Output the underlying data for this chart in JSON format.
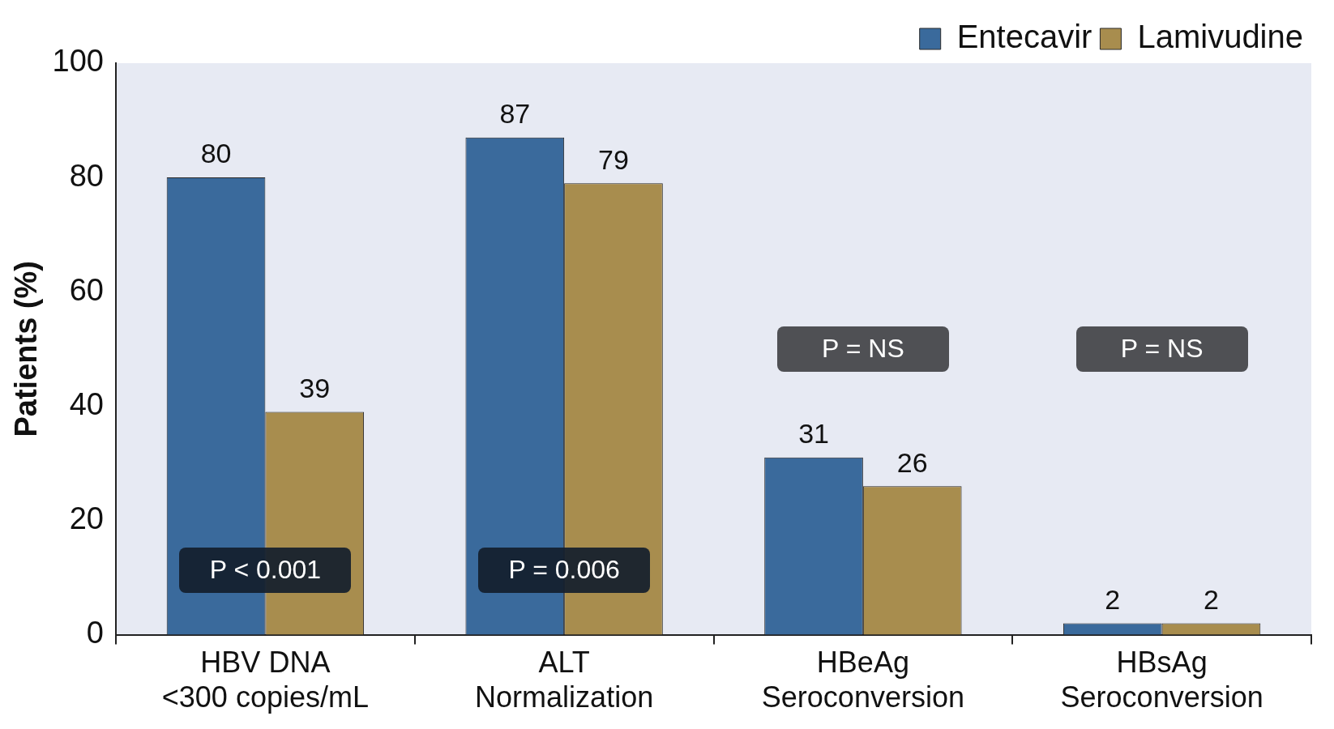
{
  "chart_data": {
    "type": "bar",
    "ylabel": "Patients (%)",
    "categories": [
      "HBV DNA\n<300 copies/mL",
      "ALT\nNormalization",
      "HBeAg\nSeroconversion",
      "HBsAg\nSeroconversion"
    ],
    "series": [
      {
        "name": "Entecavir",
        "color": "#3a6a9c",
        "values": [
          80,
          87,
          31,
          2
        ]
      },
      {
        "name": "Lamivudine",
        "color": "#a88d4e",
        "values": [
          39,
          79,
          26,
          2
        ]
      }
    ],
    "ylim": [
      0,
      100
    ],
    "yticks": [
      0,
      20,
      40,
      60,
      80,
      100
    ],
    "grid": false,
    "legend": "top right",
    "data_labels": true,
    "annotations": [
      "P < 0.001",
      "P = 0.006",
      "P = NS",
      "P = NS"
    ]
  }
}
